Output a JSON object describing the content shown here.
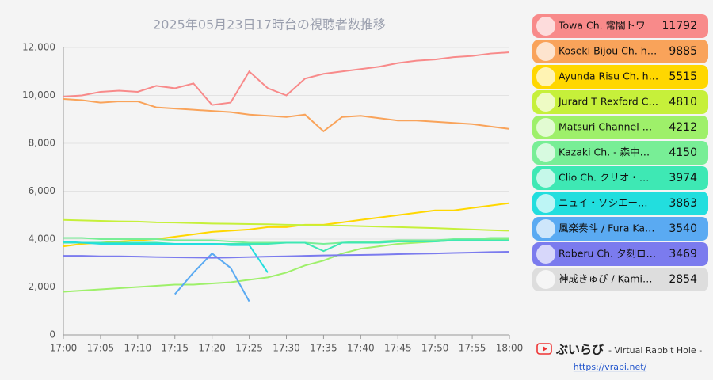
{
  "chart_data": {
    "type": "line",
    "title": "2025年05月23日17時台の視聴者数推移",
    "x": [
      0,
      2.5,
      5,
      7.5,
      10,
      12.5,
      15,
      17.5,
      20,
      22.5,
      25,
      27.5,
      30,
      32.5,
      35,
      37.5,
      40,
      42.5,
      45,
      47.5,
      50,
      52.5,
      55,
      57.5,
      60
    ],
    "xlim": [
      0,
      60
    ],
    "xticks": [
      {
        "value": 0,
        "label": "17:00"
      },
      {
        "value": 5,
        "label": "17:05"
      },
      {
        "value": 10,
        "label": "17:10"
      },
      {
        "value": 15,
        "label": "17:15"
      },
      {
        "value": 20,
        "label": "17:20"
      },
      {
        "value": 25,
        "label": "17:25"
      },
      {
        "value": 30,
        "label": "17:30"
      },
      {
        "value": 35,
        "label": "17:35"
      },
      {
        "value": 40,
        "label": "17:40"
      },
      {
        "value": 45,
        "label": "17:45"
      },
      {
        "value": 50,
        "label": "17:50"
      },
      {
        "value": 55,
        "label": "17:55"
      },
      {
        "value": 60,
        "label": "18:00"
      }
    ],
    "ylim": [
      0,
      12000
    ],
    "yticks": [
      0,
      {
        "value": 2000,
        "label": "2,000"
      },
      {
        "value": 4000,
        "label": "4,000"
      },
      {
        "value": 6000,
        "label": "6,000"
      },
      {
        "value": 8000,
        "label": "8,000"
      },
      {
        "value": 10000,
        "label": "10,000"
      },
      {
        "value": 12000,
        "label": "12,000"
      }
    ],
    "grid": true,
    "series": [
      {
        "name": "Towa Ch. 常闇トワ",
        "color": "#f88a8a",
        "latest": 11792,
        "values": [
          9950,
          10000,
          10150,
          10200,
          10150,
          10400,
          10300,
          10500,
          9600,
          9700,
          11000,
          10300,
          10000,
          10700,
          10900,
          11000,
          11100,
          11200,
          11350,
          11450,
          11500,
          11600,
          11650,
          11750,
          11800
        ]
      },
      {
        "name": "Koseki Bijou Ch. h…",
        "color": "#f9a35a",
        "latest": 9885,
        "values": [
          9850,
          9800,
          9700,
          9750,
          9750,
          9500,
          9450,
          9400,
          9350,
          9300,
          9200,
          9150,
          9100,
          9200,
          8500,
          9100,
          9150,
          9050,
          8950,
          8950,
          8900,
          8850,
          8800,
          8700,
          8600
        ]
      },
      {
        "name": "Ayunda Risu Ch. h…",
        "color": "#ffd700",
        "latest": 5515,
        "values": [
          3700,
          3800,
          3850,
          3900,
          3950,
          4000,
          4100,
          4200,
          4300,
          4350,
          4400,
          4500,
          4500,
          4600,
          4600,
          4700,
          4800,
          4900,
          5000,
          5100,
          5200,
          5200,
          5300,
          5400,
          5500
        ]
      },
      {
        "name": "Jurard T Rexford C…",
        "color": "#c6f03a",
        "latest": 4810,
        "values": [
          4800,
          4780,
          4760,
          4740,
          4730,
          4700,
          4690,
          4670,
          4650,
          4640,
          4630,
          4620,
          4600,
          4590,
          4580,
          4560,
          4540,
          4520,
          4500,
          4480,
          4460,
          4430,
          4400,
          4370,
          4350
        ]
      },
      {
        "name": "Matsuri Channel …",
        "color": "#9ef06a",
        "latest": 4212,
        "values": [
          1800,
          1850,
          1900,
          1950,
          2000,
          2050,
          2100,
          2100,
          2150,
          2200,
          2300,
          2400,
          2600,
          2900,
          3100,
          3400,
          3600,
          3700,
          3800,
          3850,
          3900,
          3950,
          3950,
          4000,
          4000
        ]
      },
      {
        "name": "Kazaki Ch. ‐ 森中…",
        "color": "#78ee96",
        "latest": 4150,
        "values": [
          4050,
          4050,
          4000,
          4000,
          4000,
          4000,
          3950,
          3950,
          3950,
          3900,
          3850,
          3850,
          3850,
          3850,
          3800,
          3850,
          3900,
          3900,
          3950,
          3950,
          3950,
          4000,
          4000,
          4050,
          4050
        ]
      },
      {
        "name": "Clio Ch. クリオ・…",
        "color": "#3ee8b4",
        "latest": 3974,
        "values": [
          3850,
          3850,
          3850,
          3850,
          3850,
          3850,
          3800,
          3800,
          3800,
          3800,
          3800,
          3800,
          3850,
          3850,
          3500,
          3850,
          3850,
          3850,
          3900,
          3900,
          3900,
          3950,
          3950,
          3950,
          3950
        ]
      },
      {
        "name": "ニュイ・ソシエー…",
        "color": "#22dede",
        "latest": 3863,
        "values": [
          3900,
          3850,
          3800,
          3800,
          3800,
          3800,
          3800,
          3800,
          3800,
          3750,
          3750,
          2600,
          null,
          null,
          null,
          null,
          null,
          null,
          null,
          null,
          null,
          null,
          null,
          null,
          null
        ]
      },
      {
        "name": "風楽奏斗 / Fura Ka…",
        "color": "#5aaaf2",
        "latest": 3540,
        "values": [
          null,
          null,
          null,
          null,
          null,
          null,
          1700,
          2600,
          3400,
          2800,
          1400,
          null,
          null,
          null,
          null,
          null,
          null,
          null,
          null,
          null,
          null,
          null,
          null,
          null,
          null
        ]
      },
      {
        "name": "Roberu Ch. 夕刻ロ…",
        "color": "#7b7bee",
        "latest": 3469,
        "values": [
          3300,
          3300,
          3280,
          3280,
          3270,
          3250,
          3240,
          3230,
          3220,
          3230,
          3250,
          3270,
          3280,
          3300,
          3320,
          3330,
          3340,
          3350,
          3370,
          3390,
          3400,
          3420,
          3440,
          3460,
          3470
        ]
      },
      {
        "name": "神成きゅぴ / Kami…",
        "color": "#dddddd",
        "latest": 2854,
        "values": [
          null,
          null,
          null,
          null,
          null,
          null,
          null,
          null,
          null,
          null,
          null,
          null,
          null,
          null,
          null,
          null,
          null,
          null,
          null,
          null,
          null,
          null,
          null,
          null,
          null
        ]
      }
    ]
  },
  "footer": {
    "brand": "ぶいらび",
    "tagline": "- Virtual Rabbit Hole -",
    "link": "https://vrabi.net/"
  }
}
